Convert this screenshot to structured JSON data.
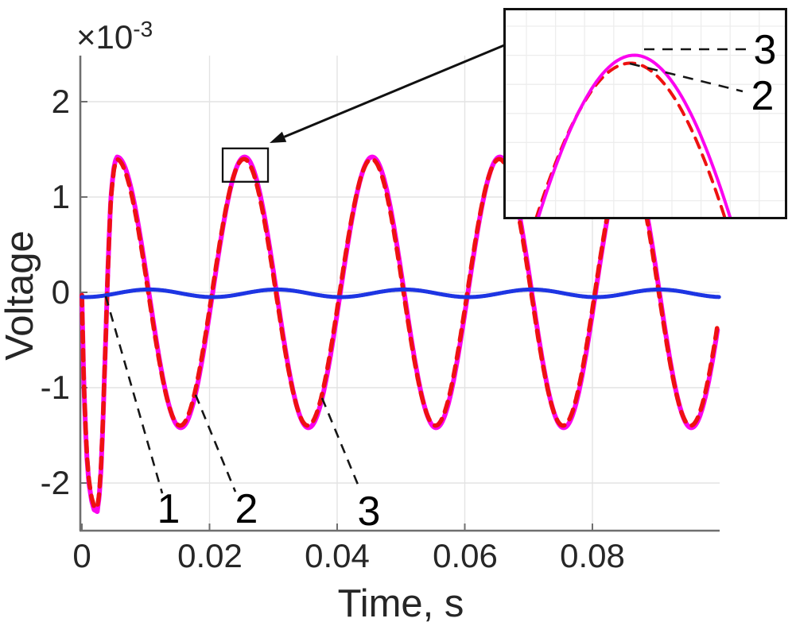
{
  "figure": {
    "y_axis": {
      "label": "Voltage",
      "multiplier_base": "×10",
      "multiplier_exp": "-3",
      "ticks": [
        "2",
        "1",
        "0",
        "-1",
        "-2"
      ]
    },
    "x_axis": {
      "label": "Time, s",
      "ticks": [
        "0",
        "0.02",
        "0.04",
        "0.06",
        "0.08"
      ]
    },
    "curve_labels": {
      "main": [
        "1",
        "2",
        "3"
      ],
      "inset_top": "3",
      "inset_bottom": "2"
    }
  },
  "chart_data": {
    "type": "line",
    "title": "",
    "xlabel": "Time, s",
    "ylabel": "Voltage",
    "y_unit_note": "volts, axis shown ×10⁻³",
    "xlim": [
      0,
      0.1
    ],
    "ylim": [
      -0.00248,
      0.00248
    ],
    "xticks": [
      0,
      0.02,
      0.04,
      0.06,
      0.08
    ],
    "yticks": [
      0.002,
      0.001,
      0,
      -0.001,
      -0.002
    ],
    "grid": true,
    "legend_position": "none",
    "series": [
      {
        "name": "1",
        "color": "#1d35e3",
        "style": "solid",
        "width": 5,
        "model": {
          "waveform": "cos",
          "amplitude_v": -4e-05,
          "offset_v": -1e-05,
          "frequency_hz": 50,
          "phase0_s": 0.0005,
          "startup": false
        }
      },
      {
        "name": "2",
        "color": "#ee1111",
        "style": "dashed",
        "width": 5.5,
        "model": {
          "waveform": "sin",
          "amplitude_v": 0.001398,
          "offset_v": 0,
          "frequency_hz": 50,
          "phase0_s": 0.0004,
          "startup": true
        }
      },
      {
        "name": "3",
        "color": "#fb04ef",
        "style": "solid",
        "width": 6,
        "model": {
          "waveform": "sin",
          "amplitude_v": 0.00142,
          "offset_v": 0,
          "frequency_hz": 50,
          "phase0_s": 0.0005,
          "startup": true
        }
      }
    ],
    "startup_transient_mV": [
      [
        0,
        -0.03
      ],
      [
        0.15,
        -0.5
      ],
      [
        0.3,
        -0.95
      ],
      [
        0.55,
        -1.4
      ],
      [
        0.8,
        -1.75
      ],
      [
        1.1,
        -2.0
      ],
      [
        1.5,
        -2.18
      ],
      [
        1.9,
        -2.28
      ],
      [
        2.4,
        -2.3
      ],
      [
        2.7,
        -2.15
      ],
      [
        3.0,
        -1.85
      ],
      [
        3.25,
        -1.45
      ],
      [
        3.5,
        -0.95
      ],
      [
        3.75,
        -0.45
      ],
      [
        4.0,
        0.1
      ],
      [
        4.25,
        0.55
      ],
      [
        4.5,
        0.95
      ],
      [
        4.75,
        1.15
      ],
      [
        5.0,
        1.3
      ],
      [
        5.25,
        1.38
      ],
      [
        5.5,
        1.42
      ]
    ],
    "inset": {
      "t_range": [
        0.022,
        0.0296
      ],
      "v_range": [
        0.00097,
        0.001545
      ]
    },
    "zoom_rect": {
      "t": [
        0.02206,
        0.02916
      ],
      "v": [
        0.00116,
        0.00151
      ]
    }
  }
}
